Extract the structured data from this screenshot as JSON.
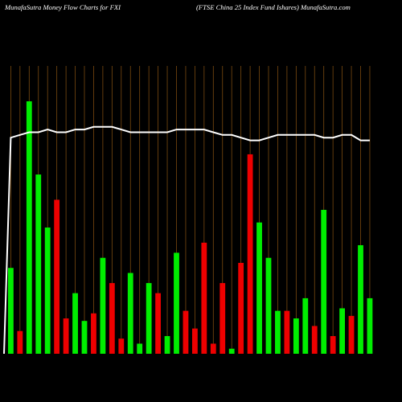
{
  "header": {
    "left": "MunafaSutra  Money Flow  Charts for FXI",
    "right": "(FTSE China  25 Index Fund Ishares) MunafaSutra.com"
  },
  "colors": {
    "up": "#00ee00",
    "down": "#ee0000",
    "line": "#ffffff",
    "grid": "#7a4a10",
    "bg": "#000000"
  },
  "chart_data": {
    "type": "bar",
    "title": "MunafaSutra  Money Flow  Charts for FXI",
    "ylim": [
      0,
      100
    ],
    "categories": [
      "",
      "",
      "",
      "",
      "",
      "",
      "",
      "",
      "",
      "",
      "",
      "",
      "",
      "",
      "",
      "",
      "",
      "",
      "",
      "",
      "",
      "",
      "",
      "",
      "",
      "",
      "",
      "",
      "",
      "",
      "",
      "",
      "",
      "",
      "",
      "",
      "",
      "",
      "",
      ""
    ],
    "values": [
      34,
      9,
      100,
      71,
      50,
      61,
      14,
      24,
      13,
      16,
      38,
      28,
      6,
      32,
      4,
      28,
      24,
      7,
      40,
      17,
      10,
      44,
      4,
      28,
      2,
      36,
      79,
      52,
      38,
      17,
      17,
      14,
      22,
      11,
      57,
      7,
      18,
      15,
      43,
      22
    ],
    "directions": [
      "up",
      "down",
      "up",
      "up",
      "up",
      "down",
      "down",
      "up",
      "up",
      "down",
      "up",
      "down",
      "down",
      "up",
      "up",
      "up",
      "down",
      "up",
      "up",
      "down",
      "down",
      "down",
      "down",
      "down",
      "up",
      "down",
      "down",
      "up",
      "up",
      "up",
      "down",
      "up",
      "up",
      "down",
      "up",
      "down",
      "up",
      "down",
      "up",
      "up"
    ],
    "line": [
      80,
      81,
      82,
      82,
      83,
      82,
      82,
      83,
      83,
      84,
      84,
      84,
      83,
      82,
      82,
      82,
      82,
      82,
      83,
      83,
      83,
      83,
      82,
      81,
      81,
      80,
      79,
      79,
      80,
      81,
      81,
      81,
      81,
      81,
      80,
      80,
      81,
      81,
      79,
      79
    ]
  }
}
